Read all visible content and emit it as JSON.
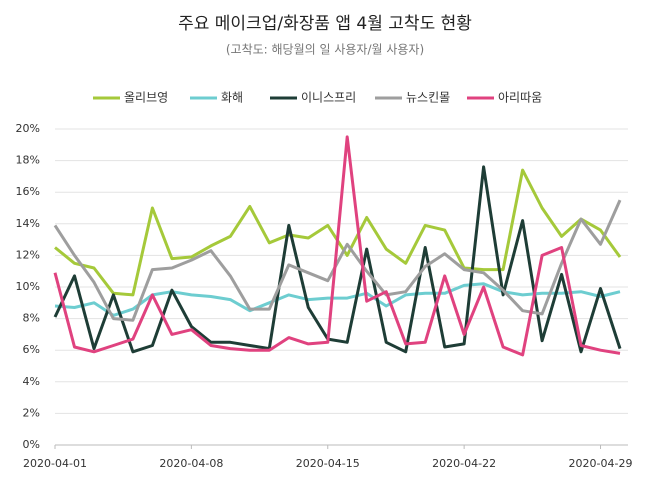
{
  "chart_data": {
    "type": "line",
    "title": "주요 메이크업/화장품 앱 4월 고착도 현황",
    "subtitle": "(고착도: 해당월의 일 사용자/월 사용자)",
    "categories": [
      "2020-04-01",
      null,
      null,
      null,
      null,
      null,
      null,
      "2020-04-08",
      null,
      null,
      null,
      null,
      null,
      null,
      "2020-04-15",
      null,
      null,
      null,
      null,
      null,
      null,
      "2020-04-22",
      null,
      null,
      null,
      null,
      null,
      null,
      "2020-04-29",
      null
    ],
    "series": [
      {
        "name": "올리브영",
        "color": "#a5c93a",
        "values": [
          12.5,
          11.5,
          11.2,
          9.6,
          9.5,
          15.0,
          11.8,
          11.9,
          12.6,
          13.2,
          15.1,
          12.8,
          13.3,
          13.1,
          13.9,
          12.0,
          14.4,
          12.4,
          11.5,
          13.9,
          13.6,
          11.2,
          11.1,
          11.1,
          17.4,
          15.0,
          13.2,
          14.3,
          13.6,
          11.9
        ]
      },
      {
        "name": "화해",
        "color": "#6dcdd0",
        "values": [
          8.8,
          8.7,
          9.0,
          8.2,
          8.6,
          9.5,
          9.7,
          9.5,
          9.4,
          9.2,
          8.5,
          9.0,
          9.5,
          9.2,
          9.3,
          9.3,
          9.6,
          8.8,
          9.5,
          9.6,
          9.6,
          10.1,
          10.2,
          9.7,
          9.5,
          9.6,
          9.6,
          9.7,
          9.4,
          9.7
        ]
      },
      {
        "name": "이니스프리",
        "color": "#1e3d36",
        "values": [
          8.1,
          10.7,
          6.1,
          9.5,
          5.9,
          6.3,
          9.8,
          7.5,
          6.5,
          6.5,
          6.3,
          6.1,
          13.9,
          8.7,
          6.7,
          6.5,
          12.4,
          6.5,
          5.9,
          12.5,
          6.2,
          6.4,
          17.6,
          9.5,
          14.2,
          6.6,
          10.8,
          5.9,
          9.9,
          6.1
        ]
      },
      {
        "name": "뉴스킨몰",
        "color": "#9e9e9e",
        "values": [
          13.9,
          12.0,
          10.3,
          8.0,
          7.9,
          11.1,
          11.2,
          11.7,
          12.3,
          10.7,
          8.6,
          8.6,
          11.4,
          10.9,
          10.4,
          12.7,
          11.0,
          9.5,
          9.7,
          11.3,
          12.1,
          11.1,
          10.9,
          9.8,
          8.5,
          8.3,
          11.5,
          14.3,
          12.7,
          15.5
        ]
      },
      {
        "name": "아리따움",
        "color": "#e0427f",
        "values": [
          10.9,
          6.2,
          5.9,
          6.3,
          6.7,
          9.5,
          7.0,
          7.3,
          6.3,
          6.1,
          6.0,
          6.0,
          6.8,
          6.4,
          6.5,
          19.5,
          9.1,
          9.7,
          6.4,
          6.5,
          10.7,
          7.0,
          10.0,
          6.2,
          5.7,
          12.0,
          12.5,
          6.3,
          6.0,
          5.8
        ]
      }
    ],
    "ylim": [
      0,
      20
    ],
    "yticks": [
      {
        "value": 0,
        "label": "0%"
      },
      {
        "value": 2,
        "label": "2%"
      },
      {
        "value": 4,
        "label": "4%"
      },
      {
        "value": 6,
        "label": "6%"
      },
      {
        "value": 8,
        "label": "8%"
      },
      {
        "value": 10,
        "label": "10%"
      },
      {
        "value": 12,
        "label": "12%"
      },
      {
        "value": 14,
        "label": "14%"
      },
      {
        "value": 16,
        "label": "16%"
      },
      {
        "value": 18,
        "label": "18%"
      },
      {
        "value": 20,
        "label": "20%"
      }
    ],
    "grid": true,
    "legend": "top"
  }
}
